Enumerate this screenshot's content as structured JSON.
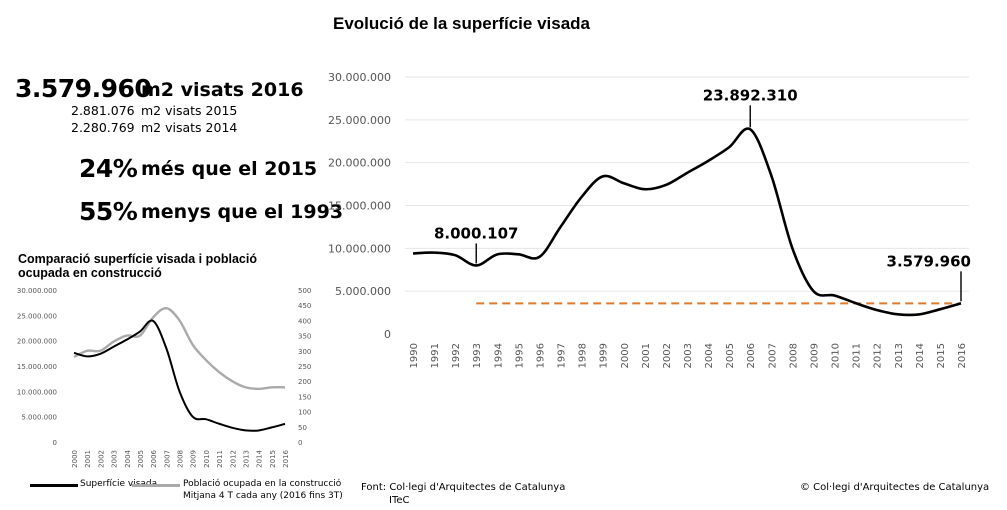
{
  "main_title": "Evolució de la superfície visada",
  "stats": {
    "m2_2016": "3.579.960",
    "m2_2016_label": "m2 visats 2016",
    "m2_2015": "2.881.076",
    "m2_2015_label": "m2 visats 2015",
    "m2_2014": "2.280.769",
    "m2_2014_label": "m2 visats 2014",
    "pct_more": "24%",
    "pct_more_label": "més que el 2015",
    "pct_less": "55%",
    "pct_less_label": "menys que el 1993"
  },
  "colors": {
    "line": "#000000",
    "population": "#aaaaaa",
    "reference": "#e07a2a",
    "axis_text": "#555555"
  },
  "chart_data": [
    {
      "type": "line",
      "title": "Evolució de la superfície visada",
      "categories": [
        "1990",
        "1991",
        "1992",
        "1993",
        "1994",
        "1995",
        "1996",
        "1997",
        "1998",
        "1999",
        "2000",
        "2001",
        "2002",
        "2003",
        "2004",
        "2005",
        "2006",
        "2007",
        "2008",
        "2009",
        "2010",
        "2011",
        "2012",
        "2013",
        "2014",
        "2015",
        "2016"
      ],
      "series": [
        {
          "values": [
            9400000,
            9500000,
            9200000,
            8000107,
            9300000,
            9300000,
            9000000,
            12500000,
            16000000,
            18400000,
            17600000,
            16900000,
            17400000,
            18800000,
            20200000,
            21800000,
            23892310,
            18500000,
            10000000,
            5000000,
            4500000,
            3600000,
            2800000,
            2300000,
            2280769,
            2881076,
            3579960
          ]
        }
      ],
      "ylim": [
        0,
        30000000
      ],
      "yticks": [
        "0",
        "5.000.000",
        "10.000.000",
        "15.000.000",
        "20.000.000",
        "25.000.000",
        "30.000.000"
      ],
      "annotations": [
        {
          "category": "1993",
          "label": "8.000.107"
        },
        {
          "category": "2006",
          "label": "23.892.310"
        },
        {
          "category": "2016",
          "label": "3.579.960"
        }
      ],
      "reference_line": {
        "value": 3579960,
        "from": "1993",
        "to": "2016",
        "style": "dashed"
      },
      "grid": "horizontal"
    },
    {
      "type": "line",
      "title": "Comparació superfície visada i població ocupada en construcció",
      "categories": [
        "2000",
        "2001",
        "2002",
        "2003",
        "2004",
        "2005",
        "2006",
        "2007",
        "2008",
        "2009",
        "2010",
        "2011",
        "2012",
        "2013",
        "2014",
        "2015",
        "2016"
      ],
      "series": [
        {
          "name": "Superfície visada",
          "axis": "left",
          "values": [
            17600000,
            16900000,
            17400000,
            18800000,
            20200000,
            21800000,
            23892310,
            18500000,
            10000000,
            5000000,
            4500000,
            3600000,
            2800000,
            2300000,
            2280769,
            2881076,
            3579960
          ]
        },
        {
          "name": "Població ocupada en la construcció",
          "axis": "right",
          "values": [
            280,
            300,
            300,
            330,
            350,
            350,
            410,
            440,
            400,
            320,
            270,
            230,
            200,
            180,
            175,
            180,
            180
          ]
        }
      ],
      "ylim_left": [
        0,
        30000000
      ],
      "yticks_left": [
        "0",
        "5.000.000",
        "10.000.000",
        "15.000.000",
        "20.000.000",
        "25.000.000",
        "30.000.000"
      ],
      "ylim_right": [
        0,
        500
      ],
      "yticks_right": [
        "0",
        "50",
        "100",
        "150",
        "200",
        "250",
        "300",
        "350",
        "400",
        "450",
        "500"
      ],
      "legend": {
        "line_label": "Superfície visada",
        "population_label": "Població ocupada en la construcció",
        "population_sublabel": "Mitjana 4 T cada any (2016 fins 3T)"
      }
    }
  ],
  "footer": {
    "source": "Font: Col·legi d'Arquitectes de Catalunya",
    "source2": "ITeC",
    "copyright": "© Col·legi d'Arquitectes de Catalunya"
  }
}
